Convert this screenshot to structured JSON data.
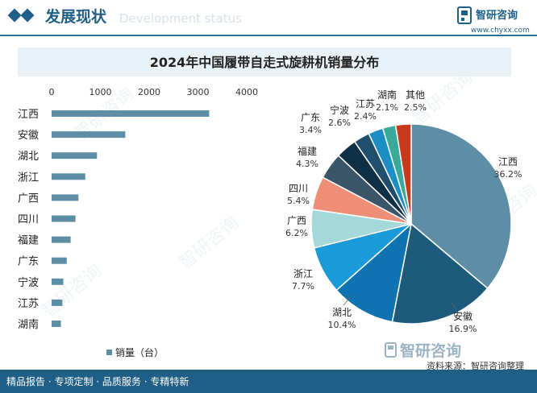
{
  "header": {
    "title": "发展现状",
    "subtitle_bg": "Development status",
    "brand_name": "智研咨询",
    "brand_url": "www.chyxx.com"
  },
  "chart_title": "2024年中国履带自走式旋耕机销量分布",
  "source_text": "资料来源：智研咨询整理",
  "watermark_text": "智研咨询",
  "footer": {
    "slogan": "精品报告 · 专项定制 · 品质服务 · 专精特新"
  },
  "colors": {
    "accent": "#1f5f87",
    "bar": "#5d8ea5",
    "title_band": "#e8f1f7"
  },
  "chart_data": [
    {
      "type": "bar",
      "orientation": "horizontal",
      "categories": [
        "江西",
        "安徽",
        "湖北",
        "浙江",
        "广西",
        "四川",
        "福建",
        "广东",
        "宁波",
        "江苏",
        "湖南"
      ],
      "values": [
        3230,
        1510,
        930,
        690,
        550,
        490,
        390,
        310,
        240,
        220,
        190
      ],
      "xticks": [
        "0",
        "1000",
        "2000",
        "3000",
        "4000"
      ],
      "xlim": [
        0,
        4000
      ],
      "legend": "销量（台）",
      "legend_position": "bottom"
    },
    {
      "type": "pie",
      "labels": [
        "江西",
        "安徽",
        "湖北",
        "浙江",
        "广西",
        "四川",
        "福建",
        "广东",
        "宁波",
        "江苏",
        "湖南",
        "其他"
      ],
      "values": [
        36.2,
        16.9,
        10.4,
        7.7,
        6.2,
        5.4,
        4.3,
        3.4,
        2.6,
        2.4,
        2.1,
        2.5
      ],
      "value_labels": [
        "36.2%",
        "16.9%",
        "10.4%",
        "7.7%",
        "6.2%",
        "5.4%",
        "4.3%",
        "3.4%",
        "2.6%",
        "2.4%",
        "2.1%",
        "2.5%"
      ],
      "colors": [
        "#5d8ea5",
        "#1d5a7b",
        "#0e73b0",
        "#1a9ad6",
        "#a5d8d8",
        "#ef8e76",
        "#3b5568",
        "#0e2f44",
        "#1f4f6d",
        "#1b8fc5",
        "#3aa89a",
        "#c93a1d"
      ]
    }
  ]
}
